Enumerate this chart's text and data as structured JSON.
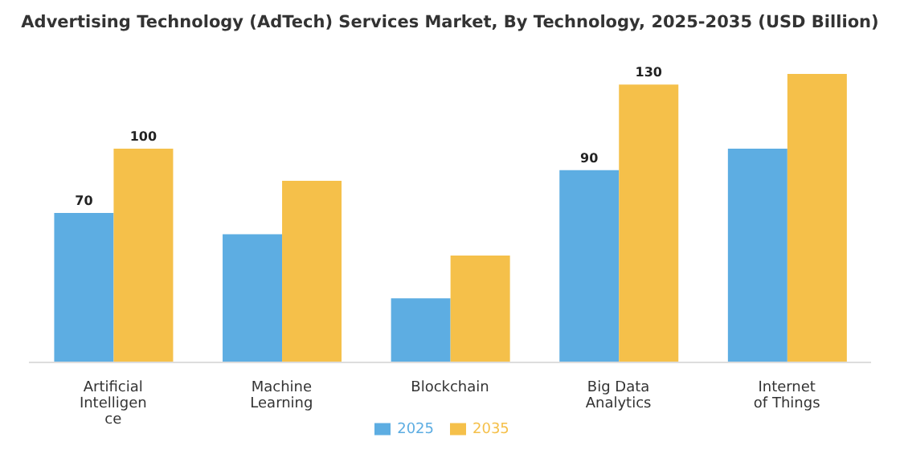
{
  "chart_data": {
    "type": "bar",
    "title": "Advertising Technology (AdTech) Services Market, By Technology, 2025-2035 (USD Billion)",
    "categories": [
      "Artificial Intelligence",
      "Machine Learning",
      "Blockchain",
      "Big Data Analytics",
      "Internet of Things"
    ],
    "series": [
      {
        "name": "2025",
        "color": "#5dade2",
        "values": [
          70,
          60,
          30,
          90,
          100
        ],
        "value_labels": [
          "70",
          null,
          null,
          "90",
          null
        ]
      },
      {
        "name": "2035",
        "color": "#f5c04a",
        "values": [
          100,
          85,
          50,
          130,
          135
        ],
        "value_labels": [
          "100",
          null,
          null,
          "130",
          null
        ]
      }
    ],
    "legend": "bottom",
    "grid": false
  }
}
